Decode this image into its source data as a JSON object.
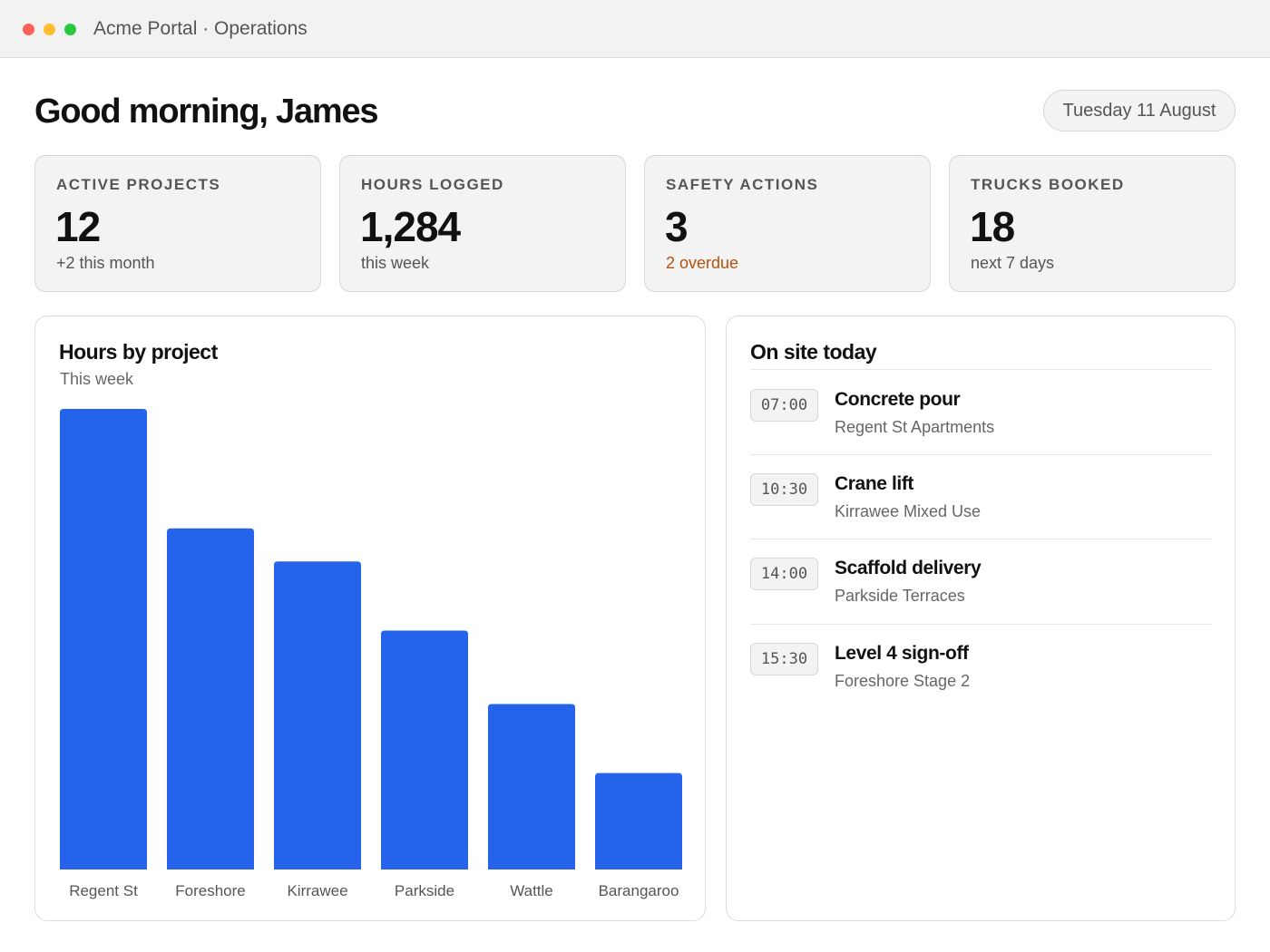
{
  "window": {
    "title": "Acme Portal · Operations"
  },
  "header": {
    "greeting": "Good morning, James",
    "date": "Tuesday 11 August"
  },
  "stats": [
    {
      "label": "ACTIVE PROJECTS",
      "value": "12",
      "sub": "+2 this month"
    },
    {
      "label": "HOURS LOGGED",
      "value": "1,284",
      "sub": "this week"
    },
    {
      "label": "SAFETY ACTIONS",
      "value": "3",
      "sub": "2 overdue"
    },
    {
      "label": "TRUCKS BOOKED",
      "value": "18",
      "sub": "next 7 days"
    }
  ],
  "hours_panel": {
    "title": "Hours by project",
    "subtitle": "This week"
  },
  "chart_data": {
    "type": "bar",
    "categories": [
      "Regent St",
      "Foreshore",
      "Kirrawee",
      "Parkside",
      "Wattle",
      "Barangaroo"
    ],
    "values": [
      320,
      237,
      214,
      166,
      115,
      67
    ],
    "title": "Hours by project",
    "subtitle": "This week",
    "ylim": [
      0,
      320
    ],
    "grid": false,
    "bar_color": "#2563eb"
  },
  "onsite_panel": {
    "title": "On site today",
    "events": [
      {
        "time": "07:00",
        "title": "Concrete pour",
        "location": "Regent St Apartments"
      },
      {
        "time": "10:30",
        "title": "Crane lift",
        "location": "Kirrawee Mixed Use"
      },
      {
        "time": "14:00",
        "title": "Scaffold delivery",
        "location": "Parkside Terraces"
      },
      {
        "time": "15:30",
        "title": "Level 4 sign-off",
        "location": "Foreshore Stage 2"
      }
    ]
  },
  "colors": {
    "accent": "#2563eb",
    "warning": "#b3520e",
    "traffic_red": "#ff5f57",
    "traffic_yellow": "#febc2e",
    "traffic_green": "#28c840"
  }
}
